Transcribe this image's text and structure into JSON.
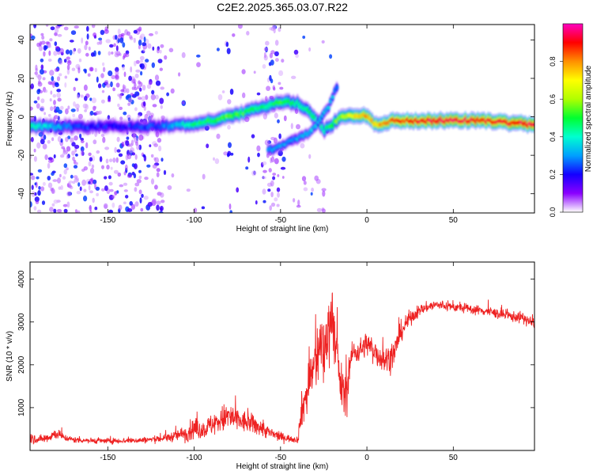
{
  "title": "C2E2.2025.365.03.07.R22",
  "chart_data": [
    {
      "type": "heatmap",
      "xlabel": "Height of straight line (km)",
      "ylabel": "Frequency (Hz)",
      "xlim": [
        -195,
        97
      ],
      "ylim": [
        -50,
        48
      ],
      "xticks": [
        -150,
        -100,
        -50,
        0,
        50
      ],
      "yticks": [
        -40,
        -20,
        0,
        20,
        40
      ],
      "colorbar": {
        "label": "Normalized spectral amplitude",
        "range": [
          0,
          1
        ],
        "ticks": [
          "0.0",
          "0.2",
          "0.4",
          "0.6",
          "0.8"
        ],
        "colormap": [
          "#ffffff",
          "#8a00ff",
          "#1400ff",
          "#00a0ff",
          "#00ffd0",
          "#00ff30",
          "#b0ff00",
          "#ffff00",
          "#ff9000",
          "#ff0000",
          "#ff00c0"
        ]
      },
      "main_track": [
        {
          "x": -195,
          "freq": -5,
          "amp": 0.45
        },
        {
          "x": -170,
          "freq": -5,
          "amp": 0.25
        },
        {
          "x": -150,
          "freq": -5,
          "amp": 0.2
        },
        {
          "x": -120,
          "freq": -5,
          "amp": 0.25
        },
        {
          "x": -100,
          "freq": -4,
          "amp": 0.45
        },
        {
          "x": -80,
          "freq": 0,
          "amp": 0.55
        },
        {
          "x": -60,
          "freq": 5,
          "amp": 0.45
        },
        {
          "x": -50,
          "freq": 8,
          "amp": 0.5
        },
        {
          "x": -40,
          "freq": 7,
          "amp": 0.45
        },
        {
          "x": -30,
          "freq": 0,
          "amp": 0.45
        },
        {
          "x": -25,
          "freq": -7,
          "amp": 0.4
        },
        {
          "x": -20,
          "freq": -4,
          "amp": 0.5
        },
        {
          "x": -15,
          "freq": 0,
          "amp": 0.6
        },
        {
          "x": -5,
          "freq": 1,
          "amp": 0.75
        },
        {
          "x": 0,
          "freq": 0,
          "amp": 0.8
        },
        {
          "x": 5,
          "freq": -4,
          "amp": 0.75
        },
        {
          "x": 15,
          "freq": -2,
          "amp": 0.85
        },
        {
          "x": 40,
          "freq": -2,
          "amp": 0.95
        },
        {
          "x": 70,
          "freq": -2,
          "amp": 0.9
        },
        {
          "x": 80,
          "freq": -3,
          "amp": 0.9
        },
        {
          "x": 97,
          "freq": -4,
          "amp": 0.95
        }
      ],
      "secondary_track": [
        {
          "x": -55,
          "freq": -17,
          "amp": 0.3
        },
        {
          "x": -45,
          "freq": -13,
          "amp": 0.3
        },
        {
          "x": -35,
          "freq": -9,
          "amp": 0.35
        },
        {
          "x": -28,
          "freq": -3,
          "amp": 0.35
        },
        {
          "x": -22,
          "freq": 5,
          "amp": 0.35
        },
        {
          "x": -18,
          "freq": 15,
          "amp": 0.3
        }
      ]
    },
    {
      "type": "line",
      "xlabel": "Height of straight line (km)",
      "ylabel": "SNR (10 * v/v)",
      "xlim": [
        -195,
        97
      ],
      "ylim": [
        0,
        4400
      ],
      "xticks": [
        -150,
        -100,
        -50,
        0,
        50
      ],
      "yticks": [
        1000,
        2000,
        3000,
        4000
      ],
      "series": [
        {
          "name": "SNR",
          "color": "#ee2222",
          "x": [
            -195,
            -190,
            -185,
            -180,
            -175,
            -170,
            -160,
            -150,
            -140,
            -130,
            -120,
            -115,
            -110,
            -105,
            -100,
            -95,
            -90,
            -85,
            -80,
            -75,
            -70,
            -65,
            -60,
            -55,
            -50,
            -45,
            -40,
            -38,
            -35,
            -32,
            -30,
            -27,
            -25,
            -22,
            -20,
            -18,
            -15,
            -12,
            -10,
            -8,
            -5,
            0,
            5,
            10,
            15,
            20,
            25,
            30,
            35,
            40,
            50,
            60,
            70,
            80,
            90,
            97
          ],
          "values": [
            300,
            250,
            300,
            400,
            300,
            250,
            230,
            220,
            230,
            240,
            270,
            300,
            350,
            400,
            500,
            480,
            600,
            700,
            800,
            700,
            650,
            600,
            500,
            380,
            320,
            280,
            250,
            900,
            1300,
            1800,
            2000,
            2500,
            2200,
            2900,
            3300,
            2300,
            1500,
            1200,
            2000,
            2300,
            2300,
            2500,
            2300,
            2100,
            2200,
            2800,
            3100,
            3250,
            3350,
            3400,
            3350,
            3300,
            3250,
            3150,
            3100,
            2950
          ],
          "noise": [
            250,
            150,
            200,
            220,
            130,
            120,
            110,
            110,
            110,
            120,
            140,
            170,
            220,
            320,
            420,
            350,
            420,
            500,
            620,
            480,
            420,
            380,
            320,
            220,
            180,
            140,
            130,
            650,
            900,
            1100,
            1250,
            1300,
            1300,
            1300,
            1300,
            1100,
            900,
            900,
            500,
            480,
            450,
            480,
            520,
            550,
            520,
            400,
            300,
            220,
            200,
            200,
            180,
            180,
            190,
            200,
            220,
            240
          ]
        }
      ]
    }
  ]
}
